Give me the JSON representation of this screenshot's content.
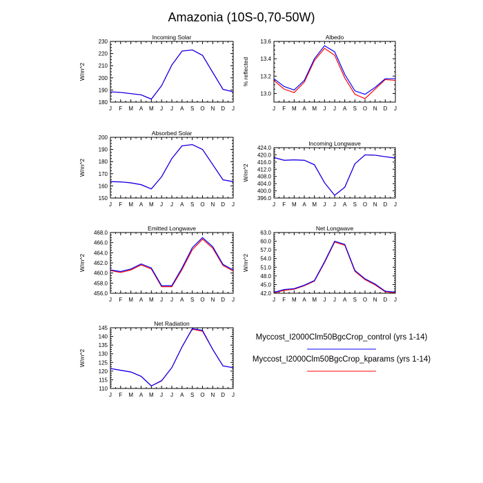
{
  "figure_title": "Amazonia (10S-0,70-50W)",
  "legend": {
    "entries": [
      {
        "label": "Myccost_I2000Clm50BgcCrop_control (yrs 1-14)",
        "color": "#0000ff"
      },
      {
        "label": "Myccost_I2000Clm50BgcCrop_kparams (yrs 1-14)",
        "color": "#ff0000"
      }
    ]
  },
  "chart_data": [
    {
      "type": "line",
      "title": "Incoming Solar",
      "ylabel": "W/m^2",
      "categories": [
        "J",
        "F",
        "M",
        "A",
        "M",
        "J",
        "J",
        "A",
        "S",
        "O",
        "N",
        "D",
        "J"
      ],
      "ylim": [
        180,
        230
      ],
      "yticks": [
        180,
        190,
        200,
        210,
        220,
        230
      ],
      "ytick_labels": [
        "180",
        "190",
        "200",
        "210",
        "220",
        "230"
      ],
      "series": [
        {
          "name": "control",
          "color": "#0000ff",
          "values": [
            188.5,
            188,
            187,
            186,
            182.5,
            193.5,
            210.5,
            222,
            223,
            218.5,
            204.5,
            190.5,
            188.5
          ]
        },
        {
          "name": "kparams",
          "color": "#ff0000",
          "values": [
            188.5,
            188,
            187,
            186,
            182.5,
            193.5,
            210.5,
            222,
            223,
            218.5,
            204.5,
            190.5,
            188.5
          ]
        }
      ]
    },
    {
      "type": "line",
      "title": "Albedo",
      "ylabel": "% reflected",
      "categories": [
        "J",
        "F",
        "M",
        "A",
        "M",
        "J",
        "J",
        "A",
        "S",
        "O",
        "N",
        "D",
        "J"
      ],
      "ylim": [
        12.9,
        13.6
      ],
      "yticks": [
        13.0,
        13.2,
        13.4,
        13.6
      ],
      "ytick_labels": [
        "13.0",
        "13.2",
        "13.4",
        "13.6"
      ],
      "series": [
        {
          "name": "control",
          "color": "#0000ff",
          "values": [
            13.17,
            13.08,
            13.04,
            13.15,
            13.4,
            13.55,
            13.48,
            13.22,
            13.03,
            12.99,
            13.07,
            13.17,
            13.17
          ]
        },
        {
          "name": "kparams",
          "color": "#ff0000",
          "values": [
            13.15,
            13.05,
            13.01,
            13.13,
            13.38,
            13.52,
            13.44,
            13.18,
            12.99,
            12.94,
            13.05,
            13.16,
            13.15
          ]
        }
      ]
    },
    {
      "type": "line",
      "title": "Absorbed Solar",
      "ylabel": "W/m^2",
      "categories": [
        "J",
        "F",
        "M",
        "A",
        "M",
        "J",
        "J",
        "A",
        "S",
        "O",
        "N",
        "D",
        "J"
      ],
      "ylim": [
        150,
        200
      ],
      "yticks": [
        150,
        160,
        170,
        180,
        190,
        200
      ],
      "ytick_labels": [
        "150",
        "160",
        "170",
        "180",
        "190",
        "200"
      ],
      "series": [
        {
          "name": "control",
          "color": "#0000ff",
          "values": [
            163.5,
            163.3,
            162.5,
            161,
            157.5,
            167.5,
            182.5,
            193,
            194,
            190,
            177.5,
            165,
            163.5
          ]
        },
        {
          "name": "kparams",
          "color": "#ff0000",
          "values": [
            163.5,
            163.3,
            162.5,
            161,
            157.5,
            167.5,
            182.5,
            193,
            194,
            190,
            177.5,
            165,
            163.5
          ]
        }
      ]
    },
    {
      "type": "line",
      "title": "Incoming Longwave",
      "ylabel": "W/m^2",
      "categories": [
        "J",
        "F",
        "M",
        "A",
        "M",
        "J",
        "J",
        "A",
        "S",
        "O",
        "N",
        "D",
        "J"
      ],
      "ylim": [
        396,
        424
      ],
      "yticks": [
        396,
        400,
        404,
        408,
        412,
        416,
        420,
        424
      ],
      "ytick_labels": [
        "396.0",
        "400.0",
        "404.0",
        "408.0",
        "412.0",
        "416.0",
        "420.0",
        "424.0"
      ],
      "series": [
        {
          "name": "control",
          "color": "#0000ff",
          "values": [
            418.5,
            417,
            417.2,
            417,
            414.5,
            404.5,
            397.5,
            402,
            415,
            420,
            419.8,
            419,
            418.2
          ]
        },
        {
          "name": "kparams",
          "color": "#ff0000",
          "values": [
            418.5,
            417,
            417.2,
            417,
            414.5,
            404.5,
            397.5,
            402,
            415,
            420,
            419.8,
            419,
            418.2
          ]
        }
      ]
    },
    {
      "type": "line",
      "title": "Emitted Longwave",
      "ylabel": "W/m^2",
      "categories": [
        "J",
        "F",
        "M",
        "A",
        "M",
        "J",
        "J",
        "A",
        "S",
        "O",
        "N",
        "D",
        "J"
      ],
      "ylim": [
        456,
        468
      ],
      "yticks": [
        456,
        458,
        460,
        462,
        464,
        466,
        468
      ],
      "ytick_labels": [
        "456.0",
        "458.0",
        "460.0",
        "462.0",
        "464.0",
        "466.0",
        "468.0"
      ],
      "series": [
        {
          "name": "control",
          "color": "#0000ff",
          "values": [
            460.6,
            460.3,
            460.8,
            461.8,
            461.0,
            457.5,
            457.5,
            461.0,
            465.0,
            467.0,
            465.2,
            461.7,
            460.6
          ]
        },
        {
          "name": "kparams",
          "color": "#ff0000",
          "values": [
            460.5,
            460.1,
            460.6,
            461.6,
            460.8,
            457.3,
            457.3,
            460.7,
            464.6,
            466.7,
            464.9,
            461.5,
            460.4
          ]
        }
      ]
    },
    {
      "type": "line",
      "title": "Net Longwave",
      "ylabel": "W/m^2",
      "categories": [
        "J",
        "F",
        "M",
        "A",
        "M",
        "J",
        "J",
        "A",
        "S",
        "O",
        "N",
        "D",
        "J"
      ],
      "ylim": [
        42,
        63
      ],
      "yticks": [
        42,
        45,
        48,
        51,
        54,
        57,
        60,
        63
      ],
      "ytick_labels": [
        "42.0",
        "45.0",
        "48.0",
        "51.0",
        "54.0",
        "57.0",
        "60.0",
        "63.0"
      ],
      "series": [
        {
          "name": "control",
          "color": "#0000ff",
          "values": [
            42.3,
            43.3,
            43.6,
            44.8,
            46.4,
            52.9,
            60.0,
            58.9,
            49.9,
            47.0,
            45.2,
            42.7,
            42.4
          ]
        },
        {
          "name": "kparams",
          "color": "#ff0000",
          "values": [
            42.1,
            43.0,
            43.4,
            44.6,
            46.2,
            52.6,
            59.7,
            58.6,
            49.6,
            46.7,
            44.9,
            42.5,
            42.2
          ]
        }
      ]
    },
    {
      "type": "line",
      "title": "Net Radiation",
      "ylabel": "W/m^2",
      "categories": [
        "J",
        "F",
        "M",
        "A",
        "M",
        "J",
        "J",
        "A",
        "S",
        "O",
        "N",
        "D",
        "J"
      ],
      "ylim": [
        110,
        145
      ],
      "yticks": [
        110,
        115,
        120,
        125,
        130,
        135,
        140,
        145
      ],
      "ytick_labels": [
        "110",
        "115",
        "120",
        "125",
        "130",
        "135",
        "140",
        "145"
      ],
      "series": [
        {
          "name": "control",
          "color": "#0000ff",
          "values": [
            121.5,
            120.5,
            119.5,
            117,
            111.5,
            114.5,
            122,
            134,
            144.5,
            143.5,
            132.5,
            123,
            122
          ]
        },
        {
          "name": "kparams",
          "color": "#ff0000",
          "values": [
            121.5,
            120.5,
            119.5,
            117,
            111.5,
            114.3,
            122,
            134,
            144.2,
            143,
            132.5,
            123,
            122
          ]
        }
      ]
    }
  ]
}
